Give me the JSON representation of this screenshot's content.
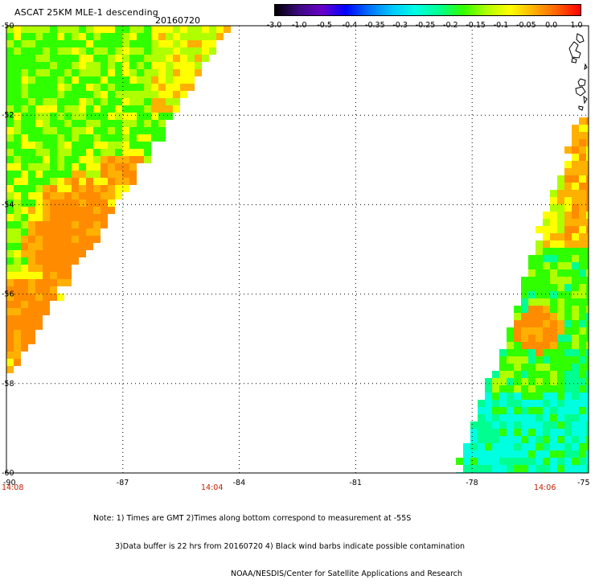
{
  "header": {
    "title": "ASCAT 25KM MLE-1 descending",
    "date": "20160720"
  },
  "colorbar": {
    "labels": [
      "-3.0",
      "-1.0",
      "-0.5",
      "-0.4",
      "-0.35",
      "-0.3",
      "-0.25",
      "-0.2",
      "-0.15",
      "-0.1",
      "-0.05",
      "0.0",
      "1.0"
    ],
    "colors": [
      "#000000",
      "#3a0a80",
      "#6a00c8",
      "#0000ff",
      "#0070ff",
      "#00c8ff",
      "#00ffe0",
      "#00ff90",
      "#30ff00",
      "#b0ff00",
      "#ffff00",
      "#ffb000",
      "#ff6000",
      "#ff0000"
    ]
  },
  "map": {
    "lat_labels": [
      "-50",
      "-52",
      "-54",
      "-56",
      "-58",
      "-60"
    ],
    "lon_labels": [
      "-90",
      "-87",
      "-84",
      "-81",
      "-78",
      "-75"
    ],
    "time_labels": [
      "14:08",
      "14:04",
      "14:06"
    ],
    "colors": {
      "orange": "#ff8c00",
      "light_orange": "#ffb000",
      "yellow": "#ffff00",
      "yellow_green": "#b0ff00",
      "green": "#30ff00",
      "cyan_green": "#00ff90",
      "cyan": "#00ffe0",
      "grid": "#000000",
      "time_text": "#c02000"
    }
  },
  "notes": [
    "Note: 1) Times are GMT 2)Times along bottom correspond to measurement at -55S",
    "3)Data buffer is 22 hrs from 20160720 4) Black wind barbs indicate possible contamination",
    "NOAA/NESDIS/Center for Satellite Applications and Research"
  ]
}
